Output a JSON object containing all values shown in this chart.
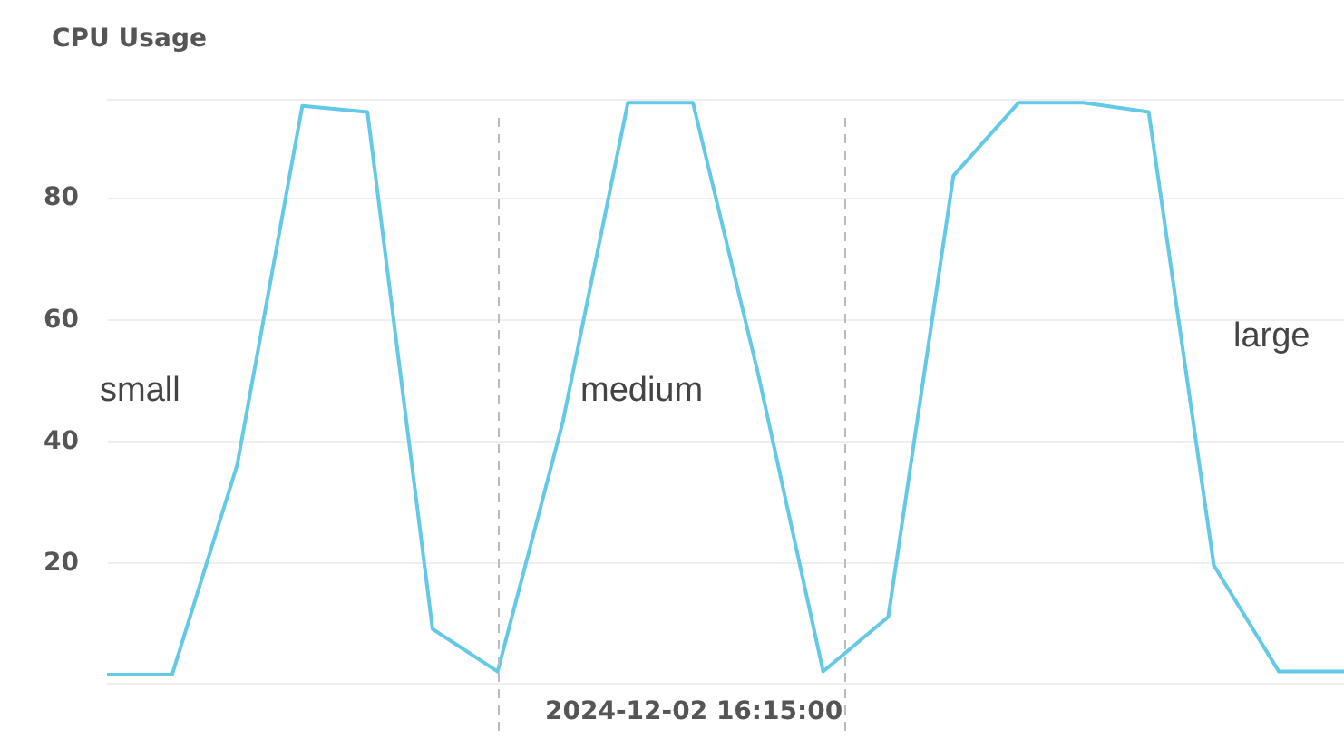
{
  "chart_data": {
    "type": "line",
    "title": "CPU Usage",
    "categories": [
      null,
      null,
      null,
      null,
      null,
      null,
      null,
      null,
      null,
      "2024-12-02 16:15:00",
      null,
      null,
      null,
      null,
      null,
      null,
      null,
      null,
      null,
      null
    ],
    "series": [
      {
        "color": "#63c9e6",
        "values": [
          1.5,
          1.5,
          36,
          95,
          94,
          9,
          2,
          43,
          95.5,
          95.5,
          51,
          2,
          11,
          83.5,
          95.5,
          95.5,
          94,
          19.5,
          2,
          2
        ]
      }
    ],
    "ylim": [
      0,
      96
    ],
    "yticks": [
      20,
      40,
      60,
      80
    ],
    "grid": "y",
    "marker": "none",
    "line_style": "solid",
    "annotations": [
      "small",
      "medium",
      "large"
    ]
  }
}
